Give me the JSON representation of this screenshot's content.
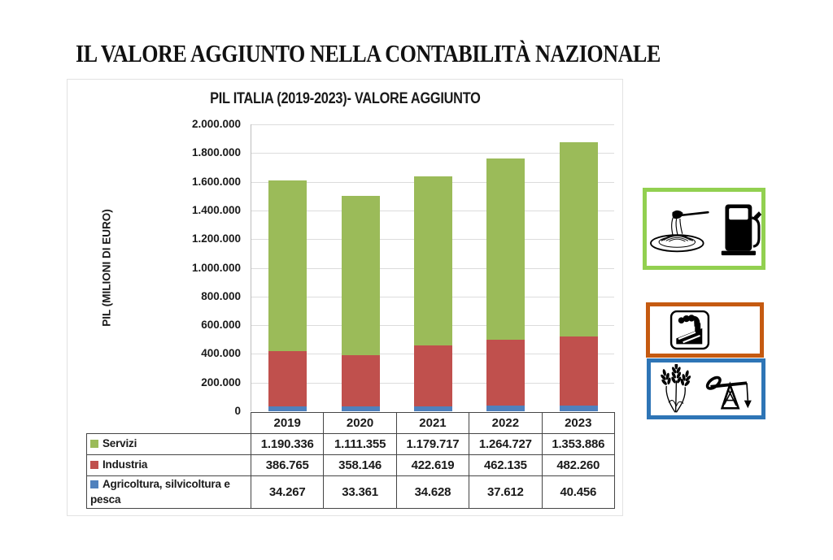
{
  "page_title": "IL VALORE AGGIUNTO NELLA CONTABILITÀ NAZIONALE",
  "chart_data": {
    "type": "bar",
    "stacked": true,
    "title": "PIL ITALIA (2019-2023)- VALORE AGGIUNTO",
    "xlabel": "",
    "ylabel": "PIL (MILIONI DI EURO)",
    "categories": [
      "2019",
      "2020",
      "2021",
      "2022",
      "2023"
    ],
    "series": [
      {
        "name": "Agricoltura, silvicoltura e pesca",
        "color": "#4F81BD",
        "values": [
          34267,
          33361,
          34628,
          37612,
          40456
        ],
        "labels": [
          "34.267",
          "33.361",
          "34.628",
          "37.612",
          "40.456"
        ]
      },
      {
        "name": "Industria",
        "color": "#C0504D",
        "values": [
          386765,
          358146,
          422619,
          462135,
          482260
        ],
        "labels": [
          "386.765",
          "358.146",
          "422.619",
          "462.135",
          "482.260"
        ]
      },
      {
        "name": "Servizi",
        "color": "#9BBB59",
        "values": [
          1190336,
          1111355,
          1179717,
          1264727,
          1353886
        ],
        "labels": [
          "1.190.336",
          "1.111.355",
          "1.179.717",
          "1.264.727",
          "1.353.886"
        ]
      }
    ],
    "ylim": [
      0,
      2000000
    ],
    "ytick_step": 200000,
    "ytick_labels": [
      "0",
      "200.000",
      "400.000",
      "600.000",
      "800.000",
      "1.000.000",
      "1.200.000",
      "1.400.000",
      "1.600.000",
      "1.800.000",
      "2.000.000"
    ],
    "grid": true,
    "legend_position": "table-left",
    "table_row_order_top_to_bottom": [
      "Servizi",
      "Industria",
      "Agricoltura, silvicoltura e pesca"
    ]
  },
  "icon_panels": [
    {
      "name": "servizi",
      "border_color": "#92D050",
      "icons": [
        "spaghetti-plate-icon",
        "fuel-pump-icon"
      ]
    },
    {
      "name": "industria",
      "border_color": "#C55A11",
      "icons": [
        "factory-icon"
      ]
    },
    {
      "name": "agricoltura",
      "border_color": "#2E75B6",
      "icons": [
        "wheat-icon",
        "oil-pumpjack-icon"
      ]
    }
  ]
}
